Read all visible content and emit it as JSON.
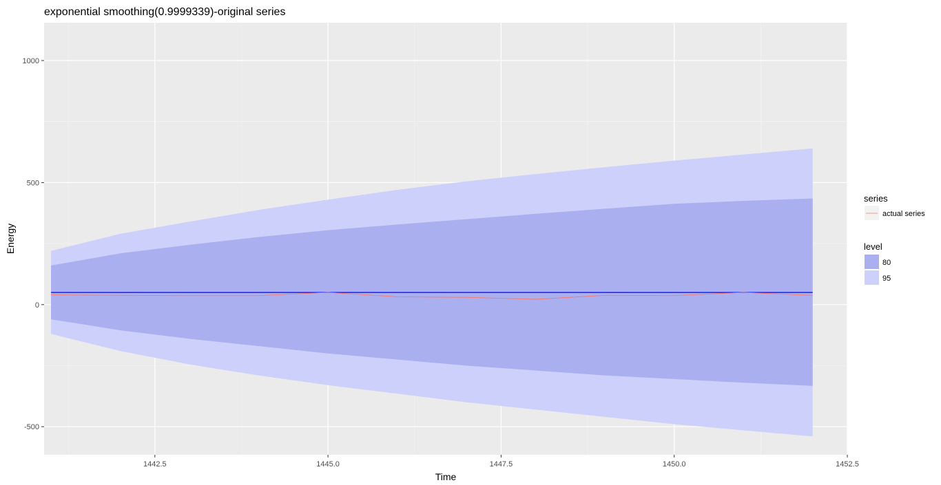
{
  "chart_data": {
    "type": "area",
    "title": "exponential smoothing(0.9999339)-original series",
    "xlabel": "Time",
    "ylabel": "Energy",
    "xlim": [
      1440.9,
      1452.5
    ],
    "ylim": [
      -615,
      1155
    ],
    "x_ticks": [
      1442.5,
      1445.0,
      1447.5,
      1450.0,
      1452.5
    ],
    "x_tick_labels": [
      "1442.5",
      "1445.0",
      "1447.5",
      "1450.0",
      "1452.5"
    ],
    "y_ticks": [
      1000,
      500,
      0,
      -500
    ],
    "y_tick_labels": [
      "1000",
      "500",
      "0",
      "-500"
    ],
    "grid": true,
    "x": [
      1441,
      1442,
      1443,
      1444,
      1445,
      1446,
      1447,
      1448,
      1449,
      1450,
      1451,
      1452
    ],
    "point_forecast": [
      50,
      50,
      50,
      50,
      50,
      50,
      50,
      50,
      50,
      50,
      50,
      50
    ],
    "bands": {
      "lo95": [
        -120,
        -190,
        -245,
        -290,
        -330,
        -365,
        -400,
        -430,
        -460,
        -490,
        -515,
        -540
      ],
      "hi95": [
        220,
        290,
        340,
        388,
        430,
        470,
        505,
        535,
        563,
        590,
        615,
        640
      ],
      "lo80": [
        -60,
        -105,
        -140,
        -170,
        -200,
        -225,
        -250,
        -270,
        -290,
        -305,
        -320,
        -333
      ],
      "hi80": [
        160,
        210,
        245,
        277,
        305,
        328,
        350,
        372,
        393,
        413,
        425,
        435
      ]
    },
    "series": [
      {
        "name": "actual series",
        "color": "#f8766d",
        "x": [
          1441,
          1442,
          1443,
          1444,
          1445,
          1446,
          1447,
          1448,
          1449,
          1450,
          1451,
          1452
        ],
        "values": [
          40,
          38,
          37,
          37,
          50,
          32,
          30,
          22,
          38,
          37,
          50,
          38
        ]
      }
    ],
    "colors": {
      "panel": "#ebebeb",
      "grid_major": "#ffffff",
      "band80": "#aaaff0",
      "band95": "#ccd0fa",
      "forecast_line": "#0000ff",
      "actual": "#f8766d"
    },
    "legend": {
      "placement": "right",
      "series_title": "series",
      "series_items": [
        {
          "label": "actual series",
          "color": "#f8766d"
        }
      ],
      "level_title": "level",
      "level_items": [
        {
          "label": "80",
          "color": "#aaaff0"
        },
        {
          "label": "95",
          "color": "#ccd0fa"
        }
      ]
    }
  }
}
